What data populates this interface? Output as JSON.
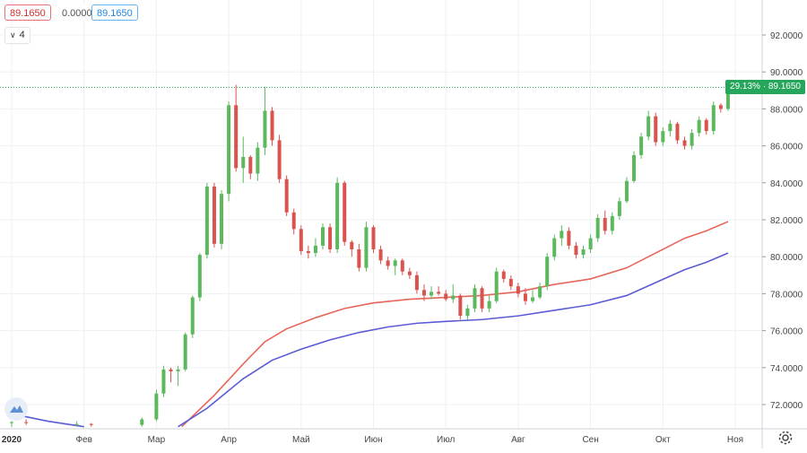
{
  "header": {
    "last_value": "89.1650",
    "change_value": "0.0000",
    "close_value": "89.1650",
    "indicator_count": "4"
  },
  "price_tag": "29.13% · 89.1650",
  "icons": {
    "logo": "tradingview-logo-icon",
    "settings": "gear-icon",
    "collapse": "chevron-down-icon"
  },
  "colors": {
    "up": "#5cb85c",
    "down": "#d9534f",
    "ma_fast": "#e8655a",
    "ma_slow": "#5b5bd6",
    "last_price": "#26a65b",
    "grid": "#eef0f3"
  },
  "chart_data": {
    "type": "candlestick",
    "year_label": "2020",
    "x_ticks": [
      "Фев",
      "Мар",
      "Апр",
      "Май",
      "Июн",
      "Июл",
      "Авг",
      "Сен",
      "Окт",
      "Ноя"
    ],
    "y_ticks": [
      "72.0000",
      "74.0000",
      "76.0000",
      "78.0000",
      "80.0000",
      "82.0000",
      "84.0000",
      "86.0000",
      "88.0000",
      "90.0000",
      "92.0000"
    ],
    "ylim": [
      70.8,
      94.0
    ],
    "last_price": 89.165,
    "change_percent": 29.13,
    "grid": true,
    "candles": [
      [
        0.0,
        71.0,
        71.1,
        70.8,
        71.05
      ],
      [
        0.2,
        71.05,
        71.2,
        70.9,
        71.0
      ],
      [
        0.9,
        70.9,
        71.1,
        70.8,
        70.95
      ],
      [
        1.1,
        70.95,
        71.0,
        70.8,
        70.9
      ],
      [
        1.8,
        70.9,
        71.3,
        70.8,
        71.2
      ],
      [
        2.0,
        71.2,
        72.8,
        71.1,
        72.6
      ],
      [
        2.1,
        72.6,
        74.1,
        72.4,
        73.9
      ],
      [
        2.2,
        73.9,
        74.0,
        73.2,
        73.8
      ],
      [
        2.3,
        73.8,
        74.1,
        73.0,
        73.9
      ],
      [
        2.4,
        73.9,
        75.9,
        73.8,
        75.8
      ],
      [
        2.5,
        75.8,
        77.9,
        75.6,
        77.8
      ],
      [
        2.6,
        77.8,
        80.2,
        77.6,
        80.1
      ],
      [
        2.7,
        80.1,
        84.0,
        79.9,
        83.8
      ],
      [
        2.8,
        83.8,
        84.0,
        80.5,
        80.7
      ],
      [
        2.9,
        80.7,
        83.6,
        80.4,
        83.4
      ],
      [
        3.0,
        83.4,
        88.4,
        83.0,
        88.2
      ],
      [
        3.1,
        88.2,
        89.3,
        84.6,
        84.8
      ],
      [
        3.2,
        84.8,
        86.5,
        84.0,
        85.4
      ],
      [
        3.3,
        85.4,
        85.5,
        84.2,
        84.5
      ],
      [
        3.4,
        84.5,
        86.2,
        84.1,
        85.9
      ],
      [
        3.5,
        85.9,
        89.2,
        85.5,
        87.9
      ],
      [
        3.6,
        87.9,
        88.1,
        86.0,
        86.3
      ],
      [
        3.7,
        86.3,
        86.6,
        84.0,
        84.2
      ],
      [
        3.8,
        84.2,
        84.4,
        82.2,
        82.4
      ],
      [
        3.9,
        82.4,
        82.6,
        81.2,
        81.5
      ],
      [
        4.0,
        81.5,
        81.7,
        80.1,
        80.3
      ],
      [
        4.1,
        80.3,
        80.6,
        79.9,
        80.2
      ],
      [
        4.2,
        80.2,
        81.0,
        80.0,
        80.6
      ],
      [
        4.3,
        80.6,
        81.8,
        80.4,
        81.6
      ],
      [
        4.4,
        81.6,
        81.8,
        80.2,
        80.4
      ],
      [
        4.5,
        80.4,
        84.3,
        80.2,
        84.0
      ],
      [
        4.6,
        84.0,
        84.1,
        80.6,
        80.8
      ],
      [
        4.7,
        80.8,
        80.9,
        80.0,
        80.4
      ],
      [
        4.8,
        80.4,
        80.7,
        79.2,
        79.4
      ],
      [
        4.9,
        79.4,
        81.9,
        79.2,
        81.6
      ],
      [
        5.0,
        81.6,
        81.7,
        80.2,
        80.4
      ],
      [
        5.1,
        80.4,
        80.6,
        79.6,
        79.8
      ],
      [
        5.2,
        79.8,
        80.0,
        79.3,
        79.5
      ],
      [
        5.3,
        79.5,
        79.9,
        79.0,
        79.8
      ],
      [
        5.4,
        79.8,
        79.9,
        79.0,
        79.2
      ],
      [
        5.5,
        79.2,
        79.4,
        78.8,
        79.0
      ],
      [
        5.6,
        79.0,
        79.2,
        78.0,
        78.2
      ],
      [
        5.7,
        78.2,
        78.5,
        77.6,
        77.9
      ],
      [
        5.8,
        77.9,
        78.4,
        77.7,
        78.1
      ],
      [
        5.9,
        78.1,
        78.4,
        77.9,
        78.0
      ],
      [
        6.0,
        78.0,
        78.2,
        77.6,
        77.7
      ],
      [
        6.1,
        77.7,
        78.5,
        77.5,
        77.9
      ],
      [
        6.2,
        77.9,
        78.0,
        76.6,
        76.8
      ],
      [
        6.3,
        76.8,
        77.4,
        76.6,
        77.2
      ],
      [
        6.4,
        77.2,
        78.5,
        77.0,
        78.3
      ],
      [
        6.5,
        78.3,
        78.4,
        77.0,
        77.2
      ],
      [
        6.6,
        77.2,
        77.9,
        77.0,
        77.6
      ],
      [
        6.7,
        77.6,
        79.4,
        77.5,
        79.2
      ],
      [
        6.8,
        79.2,
        79.3,
        78.6,
        78.8
      ],
      [
        6.9,
        78.8,
        79.0,
        78.2,
        78.4
      ],
      [
        7.0,
        78.4,
        78.6,
        77.8,
        78.0
      ],
      [
        7.1,
        78.0,
        78.3,
        77.4,
        77.6
      ],
      [
        7.2,
        77.6,
        78.2,
        77.5,
        77.8
      ],
      [
        7.3,
        77.8,
        78.6,
        77.7,
        78.4
      ],
      [
        7.4,
        78.4,
        80.2,
        78.2,
        80.0
      ],
      [
        7.5,
        80.0,
        81.2,
        79.8,
        81.0
      ],
      [
        7.6,
        81.0,
        81.7,
        80.6,
        81.4
      ],
      [
        7.7,
        81.4,
        81.6,
        80.4,
        80.6
      ],
      [
        7.8,
        80.6,
        80.8,
        79.9,
        80.1
      ],
      [
        7.9,
        80.1,
        80.6,
        79.9,
        80.4
      ],
      [
        8.0,
        80.4,
        81.2,
        80.2,
        81.0
      ],
      [
        8.1,
        81.0,
        82.3,
        80.8,
        82.1
      ],
      [
        8.2,
        82.1,
        82.5,
        81.2,
        81.4
      ],
      [
        8.3,
        81.4,
        82.4,
        81.2,
        82.2
      ],
      [
        8.4,
        82.2,
        83.2,
        82.0,
        83.0
      ],
      [
        8.5,
        83.0,
        84.3,
        82.9,
        84.1
      ],
      [
        8.6,
        84.1,
        85.7,
        84.0,
        85.5
      ],
      [
        8.7,
        85.5,
        86.7,
        85.3,
        86.5
      ],
      [
        8.8,
        86.5,
        87.9,
        86.3,
        87.6
      ],
      [
        8.9,
        87.6,
        87.8,
        86.0,
        86.2
      ],
      [
        9.0,
        86.2,
        87.0,
        86.0,
        86.8
      ],
      [
        9.1,
        86.8,
        87.4,
        86.5,
        87.2
      ],
      [
        9.2,
        87.2,
        87.3,
        86.1,
        86.3
      ],
      [
        9.3,
        86.3,
        86.5,
        85.8,
        86.0
      ],
      [
        9.4,
        86.0,
        86.9,
        85.8,
        86.7
      ],
      [
        9.5,
        86.7,
        87.6,
        86.5,
        87.4
      ],
      [
        9.6,
        87.4,
        87.5,
        86.6,
        86.8
      ],
      [
        9.7,
        86.8,
        88.4,
        86.6,
        88.2
      ],
      [
        9.8,
        88.2,
        88.3,
        87.8,
        88.0
      ],
      [
        9.9,
        88.0,
        89.4,
        87.9,
        89.165
      ]
    ],
    "series": [
      {
        "color": "#e8655a",
        "points": [
          [
            2.35,
            70.8
          ],
          [
            2.8,
            72.5
          ],
          [
            3.2,
            74.2
          ],
          [
            3.5,
            75.4
          ],
          [
            3.8,
            76.1
          ],
          [
            4.2,
            76.7
          ],
          [
            4.6,
            77.2
          ],
          [
            5.0,
            77.5
          ],
          [
            5.5,
            77.7
          ],
          [
            6.0,
            77.8
          ],
          [
            6.5,
            77.9
          ],
          [
            7.0,
            78.1
          ],
          [
            7.5,
            78.5
          ],
          [
            8.0,
            78.8
          ],
          [
            8.5,
            79.4
          ],
          [
            8.9,
            80.2
          ],
          [
            9.3,
            81.0
          ],
          [
            9.6,
            81.4
          ],
          [
            9.9,
            81.9
          ]
        ]
      },
      {
        "color": "#5b5bd6",
        "points": [
          [
            2.3,
            70.8
          ],
          [
            2.7,
            71.8
          ],
          [
            3.2,
            73.4
          ],
          [
            3.6,
            74.4
          ],
          [
            4.0,
            75.0
          ],
          [
            4.4,
            75.5
          ],
          [
            4.8,
            75.9
          ],
          [
            5.2,
            76.2
          ],
          [
            5.6,
            76.4
          ],
          [
            6.0,
            76.5
          ],
          [
            6.5,
            76.6
          ],
          [
            7.0,
            76.8
          ],
          [
            7.5,
            77.1
          ],
          [
            8.0,
            77.4
          ],
          [
            8.5,
            77.9
          ],
          [
            8.9,
            78.6
          ],
          [
            9.3,
            79.3
          ],
          [
            9.6,
            79.7
          ],
          [
            9.9,
            80.2
          ]
        ]
      },
      {
        "color": "#5b5bd6",
        "points": [
          [
            0.0,
            71.5
          ],
          [
            0.5,
            71.1
          ],
          [
            1.0,
            70.8
          ]
        ]
      }
    ]
  }
}
